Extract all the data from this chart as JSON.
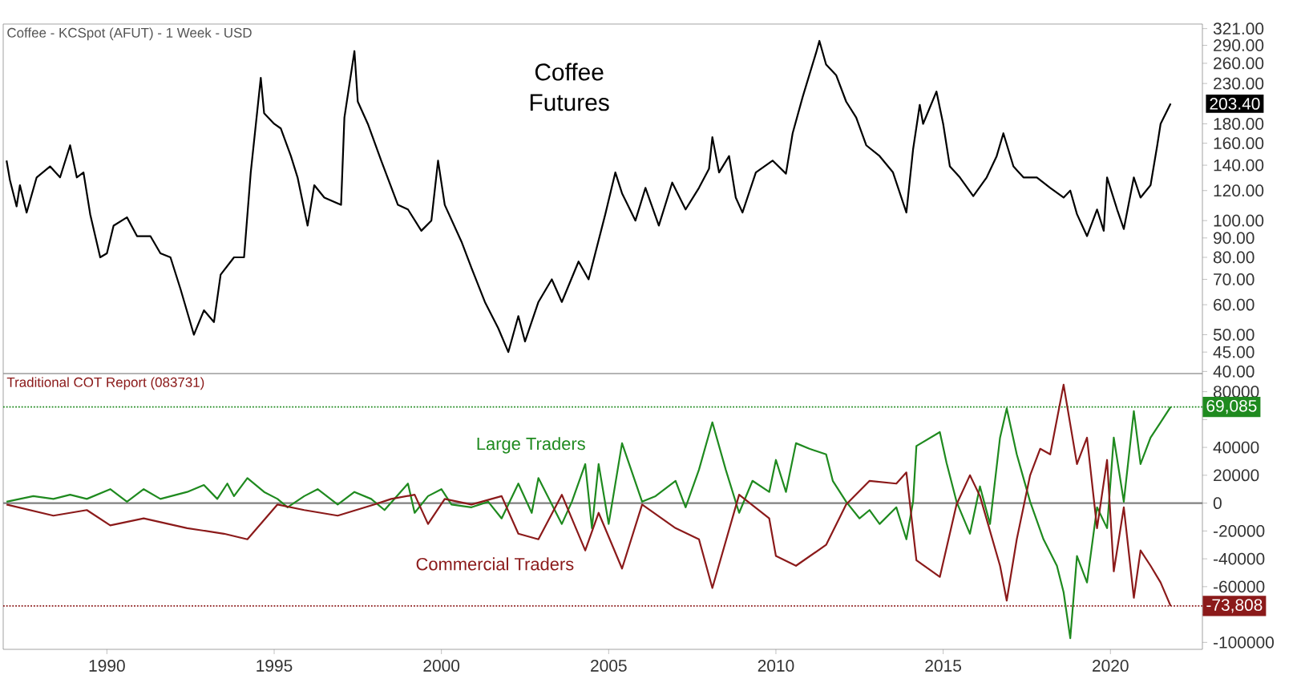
{
  "chart_data": [
    {
      "type": "line",
      "title": "Coffee Futures",
      "annotations": [
        "Coffee - KCSpot (AFUT) - 1 Week - USD",
        {
          "text": "203.40",
          "x": 2021.8,
          "y": 203.4
        }
      ],
      "x": [
        1987.0,
        1987.1,
        1987.3,
        1987.4,
        1987.6,
        1987.9,
        1988.3,
        1988.6,
        1988.9,
        1989.1,
        1989.3,
        1989.5,
        1989.8,
        1990.0,
        1990.2,
        1990.6,
        1990.9,
        1991.3,
        1991.6,
        1991.9,
        1992.2,
        1992.6,
        1992.9,
        1993.2,
        1993.4,
        1993.8,
        1994.1,
        1994.3,
        1994.6,
        1994.7,
        1995.0,
        1995.2,
        1995.5,
        1995.7,
        1996.0,
        1996.2,
        1996.5,
        1997.0,
        1997.1,
        1997.4,
        1997.5,
        1997.8,
        1998.2,
        1998.7,
        1999.0,
        1999.4,
        1999.7,
        1999.9,
        2000.1,
        2000.6,
        2000.9,
        2001.3,
        2001.7,
        2002.0,
        2002.3,
        2002.5,
        2002.9,
        2003.3,
        2003.6,
        2004.1,
        2004.4,
        2004.9,
        2005.2,
        2005.4,
        2005.8,
        2006.1,
        2006.5,
        2006.9,
        2007.3,
        2007.7,
        2008.0,
        2008.1,
        2008.3,
        2008.6,
        2008.8,
        2009.0,
        2009.4,
        2009.9,
        2010.3,
        2010.5,
        2010.8,
        2011.2,
        2011.3,
        2011.5,
        2011.8,
        2012.1,
        2012.4,
        2012.7,
        2013.1,
        2013.5,
        2013.9,
        2014.1,
        2014.3,
        2014.4,
        2014.8,
        2015.0,
        2015.2,
        2015.5,
        2015.9,
        2016.3,
        2016.6,
        2016.8,
        2017.1,
        2017.4,
        2017.8,
        2018.2,
        2018.6,
        2018.8,
        2019.0,
        2019.3,
        2019.6,
        2019.8,
        2019.9,
        2020.2,
        2020.4,
        2020.7,
        2020.9,
        2021.2,
        2021.4,
        2021.5,
        2021.8
      ],
      "values": [
        144,
        128,
        109,
        124,
        105,
        130,
        139,
        130,
        158,
        130,
        134,
        104,
        80,
        82,
        97,
        102,
        91,
        91,
        82,
        80,
        66,
        50,
        58,
        54,
        72,
        80,
        80,
        134,
        238,
        192,
        180,
        175,
        148,
        130,
        97,
        124,
        115,
        110,
        187,
        280,
        206,
        180,
        144,
        110,
        107,
        94,
        100,
        144,
        110,
        88,
        75,
        61,
        52,
        45,
        56,
        48,
        61,
        70,
        61,
        78,
        70,
        104,
        134,
        118,
        100,
        122,
        97,
        126,
        107,
        122,
        137,
        166,
        134,
        148,
        115,
        105,
        134,
        144,
        133,
        170,
        212,
        277,
        298,
        258,
        242,
        206,
        187,
        158,
        148,
        134,
        105,
        154,
        202,
        180,
        219,
        180,
        139,
        130,
        116,
        130,
        148,
        170,
        139,
        130,
        130,
        122,
        115,
        120,
        104,
        91,
        107,
        94,
        130,
        107,
        95,
        130,
        115,
        124,
        158,
        180,
        203.4
      ],
      "color": "#000000",
      "log": true,
      "xlim": [
        1986.9,
        2022.75
      ],
      "ylim": [
        39.5,
        330
      ],
      "yticks": [
        {
          "value": 40,
          "label": "40.00"
        },
        {
          "value": 45,
          "label": "45.00"
        },
        {
          "value": 50,
          "label": "50.00"
        },
        {
          "value": 60,
          "label": "60.00"
        },
        {
          "value": 70,
          "label": "70.00"
        },
        {
          "value": 80,
          "label": "80.00"
        },
        {
          "value": 90,
          "label": "90.00"
        },
        {
          "value": 100,
          "label": "100.00"
        },
        {
          "value": 120,
          "label": "120.00"
        },
        {
          "value": 140,
          "label": "140.00"
        },
        {
          "value": 160,
          "label": "160.00"
        },
        {
          "value": 180,
          "label": "180.00"
        },
        {
          "value": 230,
          "label": "230.00"
        },
        {
          "value": 260,
          "label": "260.00"
        },
        {
          "value": 290,
          "label": "290.00"
        },
        {
          "value": 321,
          "label": "321.00"
        }
      ],
      "tick_labels": "y"
    },
    {
      "type": "line",
      "annotations": [
        "Traditional COT Report (083731)"
      ],
      "series": [
        {
          "name": "Large Traders",
          "color": "#1f8a1f",
          "x": [
            1987.0,
            1987.8,
            1988.4,
            1988.9,
            1989.4,
            1990.1,
            1990.6,
            1991.1,
            1991.6,
            1992.4,
            1992.9,
            1993.3,
            1993.6,
            1993.8,
            1994.2,
            1994.7,
            1995.1,
            1995.4,
            1995.9,
            1996.3,
            1996.9,
            1997.4,
            1997.9,
            1998.3,
            1999.0,
            1999.2,
            1999.6,
            2000.0,
            2000.3,
            2000.9,
            2001.4,
            2001.8,
            2002.3,
            2002.7,
            2002.9,
            2003.6,
            2003.9,
            2004.3,
            2004.5,
            2004.7,
            2005.0,
            2005.4,
            2005.7,
            2006.0,
            2006.4,
            2007.0,
            2007.3,
            2007.7,
            2008.1,
            2008.5,
            2008.9,
            2009.3,
            2009.8,
            2010.0,
            2010.3,
            2010.6,
            2011.0,
            2011.5,
            2011.7,
            2012.1,
            2012.5,
            2012.8,
            2013.1,
            2013.6,
            2013.9,
            2014.1,
            2014.2,
            2014.9,
            2015.1,
            2015.4,
            2015.8,
            2016.1,
            2016.4,
            2016.7,
            2016.9,
            2017.2,
            2017.6,
            2018.0,
            2018.4,
            2018.6,
            2018.8,
            2019.0,
            2019.3,
            2019.6,
            2019.9,
            2020.1,
            2020.4,
            2020.7,
            2020.9,
            2021.2,
            2021.5,
            2021.8
          ],
          "values": [
            1000,
            5000,
            3000,
            6000,
            3000,
            10000,
            1000,
            10000,
            3000,
            8000,
            13000,
            3000,
            14000,
            5000,
            18000,
            8000,
            3000,
            -3000,
            5000,
            10000,
            -1000,
            8000,
            3000,
            -5000,
            14000,
            -7000,
            5000,
            10000,
            -1000,
            -3000,
            1000,
            -11000,
            14000,
            -7000,
            18000,
            -15000,
            1000,
            28000,
            -18000,
            28000,
            -15000,
            43000,
            22000,
            1000,
            5000,
            16000,
            -3000,
            24000,
            58000,
            24000,
            -7000,
            16000,
            8000,
            31000,
            8000,
            43000,
            39000,
            35000,
            16000,
            1000,
            -11000,
            -5000,
            -15000,
            -3000,
            -26000,
            1000,
            41000,
            51000,
            29000,
            1000,
            -22000,
            12000,
            -15000,
            47000,
            68000,
            35000,
            1000,
            -26000,
            -45000,
            -64000,
            -97000,
            -38000,
            -57000,
            -3000,
            -18000,
            47000,
            1000,
            66000,
            28000,
            47000,
            58000,
            69085
          ]
        },
        {
          "name": "Commercial Traders",
          "color": "#8b1a1a",
          "x": [
            1987.0,
            1988.4,
            1989.4,
            1990.1,
            1991.1,
            1992.4,
            1993.5,
            1994.2,
            1995.1,
            1995.9,
            1996.9,
            1998.0,
            1998.5,
            1999.2,
            1999.6,
            2000.1,
            2000.9,
            2001.8,
            2002.3,
            2002.9,
            2003.6,
            2004.3,
            2004.7,
            2005.4,
            2006.0,
            2007.0,
            2007.7,
            2008.1,
            2008.9,
            2009.8,
            2010.0,
            2010.6,
            2011.5,
            2012.1,
            2012.8,
            2013.6,
            2013.9,
            2014.2,
            2014.9,
            2015.4,
            2015.8,
            2016.1,
            2016.7,
            2016.9,
            2017.2,
            2017.6,
            2017.9,
            2018.2,
            2018.6,
            2019.0,
            2019.3,
            2019.6,
            2019.9,
            2020.1,
            2020.4,
            2020.7,
            2020.9,
            2021.2,
            2021.5,
            2021.8
          ],
          "values": [
            -1000,
            -9000,
            -5000,
            -16000,
            -11000,
            -18000,
            -22000,
            -26000,
            -1000,
            -5000,
            -9000,
            -1000,
            3000,
            6000,
            -15000,
            3000,
            -1000,
            5000,
            -22000,
            -26000,
            6000,
            -34000,
            -7000,
            -47000,
            -1000,
            -18000,
            -26000,
            -61000,
            6000,
            -11000,
            -38000,
            -45000,
            -30000,
            -1000,
            16000,
            14000,
            22000,
            -41000,
            -53000,
            -1000,
            20000,
            5000,
            -45000,
            -70000,
            -26000,
            20000,
            39000,
            35000,
            85000,
            28000,
            47000,
            -18000,
            31000,
            -49000,
            -3000,
            -68000,
            -34000,
            -45000,
            -57000,
            -73808
          ]
        }
      ],
      "xlim": [
        1986.9,
        2022.75
      ],
      "ylim": [
        -105000,
        93000
      ],
      "xticks": [
        1990,
        1995,
        2000,
        2005,
        2010,
        2015,
        2020
      ],
      "yticks": [
        -100000,
        {
          "value": -80000,
          "label": null
        },
        -60000,
        -40000,
        -20000,
        0,
        20000,
        40000,
        {
          "value": 60000,
          "label": null
        },
        80000
      ],
      "ref_lines": [
        {
          "axis": "y",
          "value": 0,
          "color": "#808080",
          "line_style": "solid"
        },
        {
          "axis": "y",
          "value": 69085,
          "label": "69,085",
          "color": "#1f8a1f",
          "line_style": "dotted"
        },
        {
          "axis": "y",
          "value": -73808,
          "label": "-73,808",
          "color": "#8b1a1a",
          "line_style": "dotted"
        }
      ]
    }
  ]
}
